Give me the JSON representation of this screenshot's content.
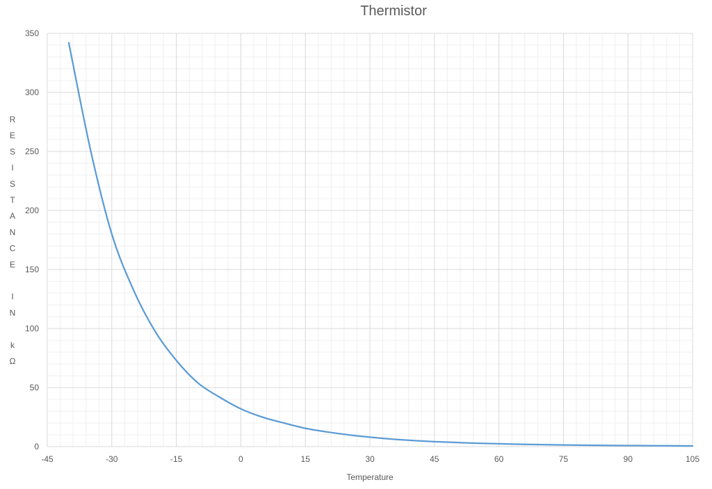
{
  "chart_data": {
    "type": "line",
    "title": "Thermistor",
    "xlabel": "Temperature",
    "ylabel": "RESISTANCE IN kΩ",
    "xlim": [
      -45,
      105
    ],
    "ylim": [
      0,
      350
    ],
    "x_ticks": [
      "-45",
      "-30",
      "-15",
      "0",
      "15",
      "30",
      "45",
      "60",
      "75",
      "90",
      "105"
    ],
    "y_ticks": [
      "0",
      "50",
      "100",
      "150",
      "200",
      "250",
      "300",
      "350"
    ],
    "grid": true,
    "legend": "none",
    "colors": {
      "line": "#5b9bd5",
      "major_grid": "#d9d9d9",
      "minor_grid": "#efefef"
    },
    "series": [
      {
        "x": [
          -40,
          -35,
          -30,
          -25,
          -20,
          -15,
          -10,
          -5,
          0,
          5,
          10,
          15,
          20,
          25,
          30,
          35,
          40,
          45,
          50,
          55,
          60,
          65,
          70,
          75,
          80,
          85,
          90,
          95,
          100,
          105
        ],
        "values": [
          342,
          252,
          180,
          133,
          98,
          73,
          54,
          42,
          32,
          25,
          20,
          15.5,
          12.5,
          10,
          8,
          6.4,
          5.2,
          4.2,
          3.5,
          2.9,
          2.4,
          2.0,
          1.7,
          1.4,
          1.2,
          1.0,
          0.9,
          0.8,
          0.7,
          0.6
        ]
      }
    ]
  }
}
